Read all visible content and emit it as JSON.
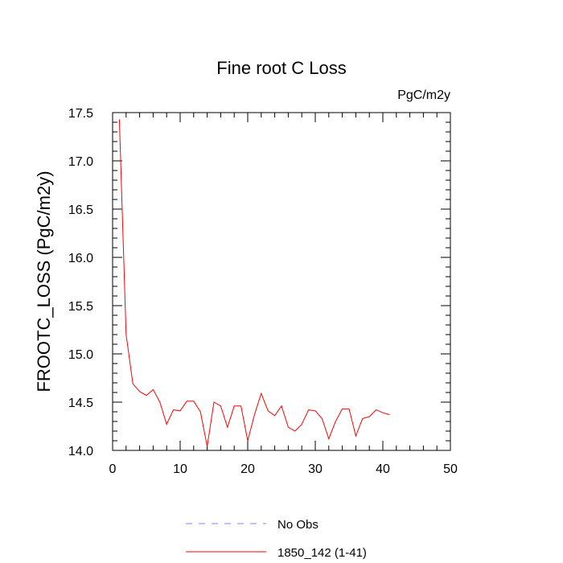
{
  "chart_data": {
    "type": "line",
    "title": "Fine root C Loss",
    "units_label": "PgC/m2y",
    "ylabel": "FROOTC_LOSS  (PgC/m2y)",
    "xlabel": "",
    "xlim": [
      0,
      50
    ],
    "ylim": [
      14.0,
      17.5
    ],
    "x_ticks": [
      0,
      10,
      20,
      30,
      40,
      50
    ],
    "y_ticks": [
      14.0,
      14.5,
      15.0,
      15.5,
      16.0,
      16.5,
      17.0,
      17.5
    ],
    "x_tick_labels": [
      "0",
      "10",
      "20",
      "30",
      "40",
      "50"
    ],
    "y_tick_labels": [
      "14.0",
      "14.5",
      "15.0",
      "15.5",
      "16.0",
      "16.5",
      "17.0",
      "17.5"
    ],
    "grid": false,
    "legend_position": "bottom-center",
    "series": [
      {
        "name": "No Obs",
        "color": "#8080ff",
        "dash": "dashed",
        "x": [],
        "values": []
      },
      {
        "name": "1850_142 (1-41)",
        "color": "#ff0000",
        "dash": "solid",
        "x": [
          1,
          2,
          3,
          4,
          5,
          6,
          7,
          8,
          9,
          10,
          11,
          12,
          13,
          14,
          15,
          16,
          17,
          18,
          19,
          20,
          21,
          22,
          23,
          24,
          25,
          26,
          27,
          28,
          29,
          30,
          31,
          32,
          33,
          34,
          35,
          36,
          37,
          38,
          39,
          40,
          41
        ],
        "values": [
          17.43,
          15.2,
          14.69,
          14.61,
          14.57,
          14.63,
          14.5,
          14.27,
          14.42,
          14.41,
          14.51,
          14.51,
          14.4,
          14.04,
          14.5,
          14.46,
          14.24,
          14.46,
          14.46,
          14.1,
          14.37,
          14.59,
          14.41,
          14.36,
          14.46,
          14.24,
          14.2,
          14.27,
          14.42,
          14.41,
          14.33,
          14.12,
          14.3,
          14.43,
          14.43,
          14.15,
          14.33,
          14.35,
          14.42,
          14.39,
          14.37
        ]
      }
    ]
  }
}
